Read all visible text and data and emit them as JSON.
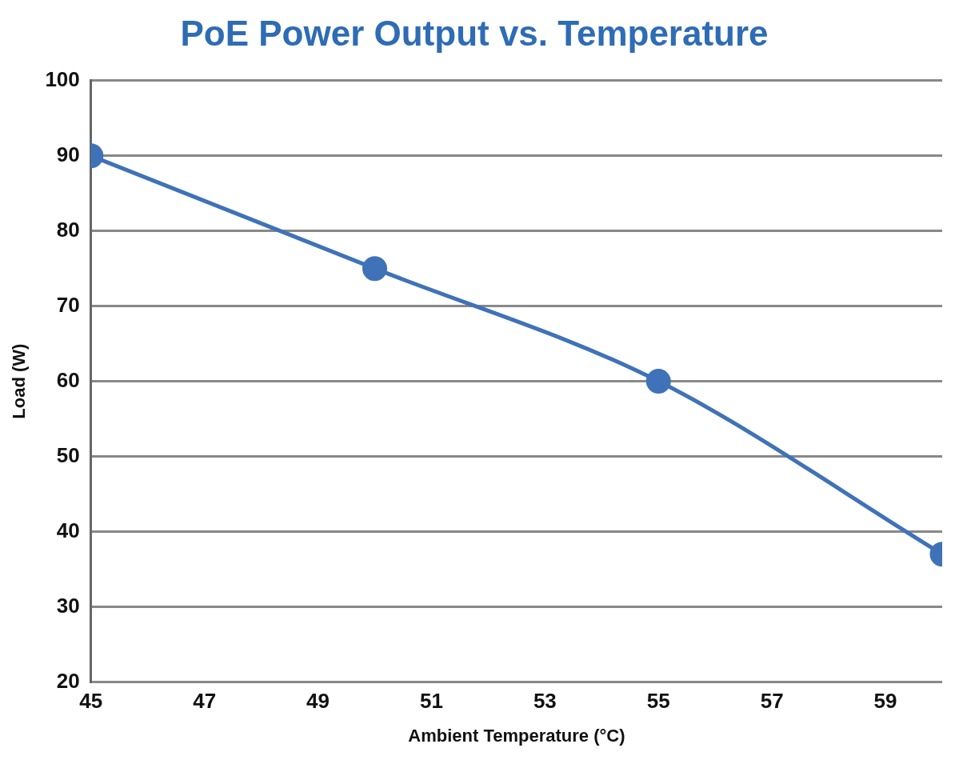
{
  "chart_data": {
    "type": "line",
    "title": "PoE Power Output vs. Temperature",
    "xlabel": "Ambient Temperature (°C)",
    "ylabel": "Load (W)",
    "x": [
      45,
      50,
      55,
      60
    ],
    "values": [
      90,
      75,
      60,
      37
    ],
    "color": "#3f72b8",
    "xlim": [
      45,
      60
    ],
    "xticks": [
      45,
      47,
      49,
      51,
      53,
      55,
      57,
      59
    ],
    "ylim": [
      20,
      100
    ],
    "yticks": [
      20,
      30,
      40,
      50,
      60,
      70,
      80,
      90,
      100
    ],
    "grid": "y",
    "marker": "circle",
    "line_style": "solid"
  }
}
